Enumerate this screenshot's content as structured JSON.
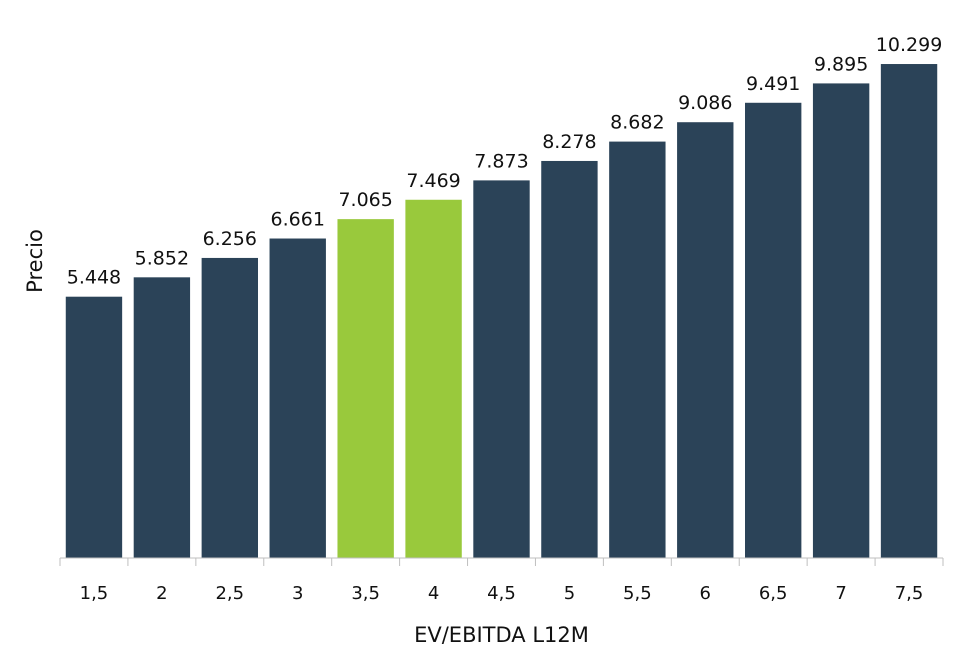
{
  "chart_data": {
    "type": "bar",
    "categories": [
      "1,5",
      "2",
      "2,5",
      "3",
      "3,5",
      "4",
      "4,5",
      "5",
      "5,5",
      "6",
      "6,5",
      "7",
      "7,5"
    ],
    "values": [
      5.448,
      5.852,
      6.256,
      6.661,
      7.065,
      7.469,
      7.873,
      8.278,
      8.682,
      9.086,
      9.491,
      9.895,
      10.299
    ],
    "value_labels": [
      "5.448",
      "5.852",
      "6.256",
      "6.661",
      "7.065",
      "7.469",
      "7.873",
      "8.278",
      "8.682",
      "9.086",
      "9.491",
      "9.895",
      "10.299"
    ],
    "highlighted": [
      "3,5",
      "4"
    ],
    "xlabel": "EV/EBITDA L12M",
    "ylabel": "Precio",
    "ylim": [
      0,
      10.8
    ],
    "grid": false,
    "colors": {
      "bar": "#2b4358",
      "highlight": "#99c93c",
      "axis": "#bfbfbf"
    }
  }
}
